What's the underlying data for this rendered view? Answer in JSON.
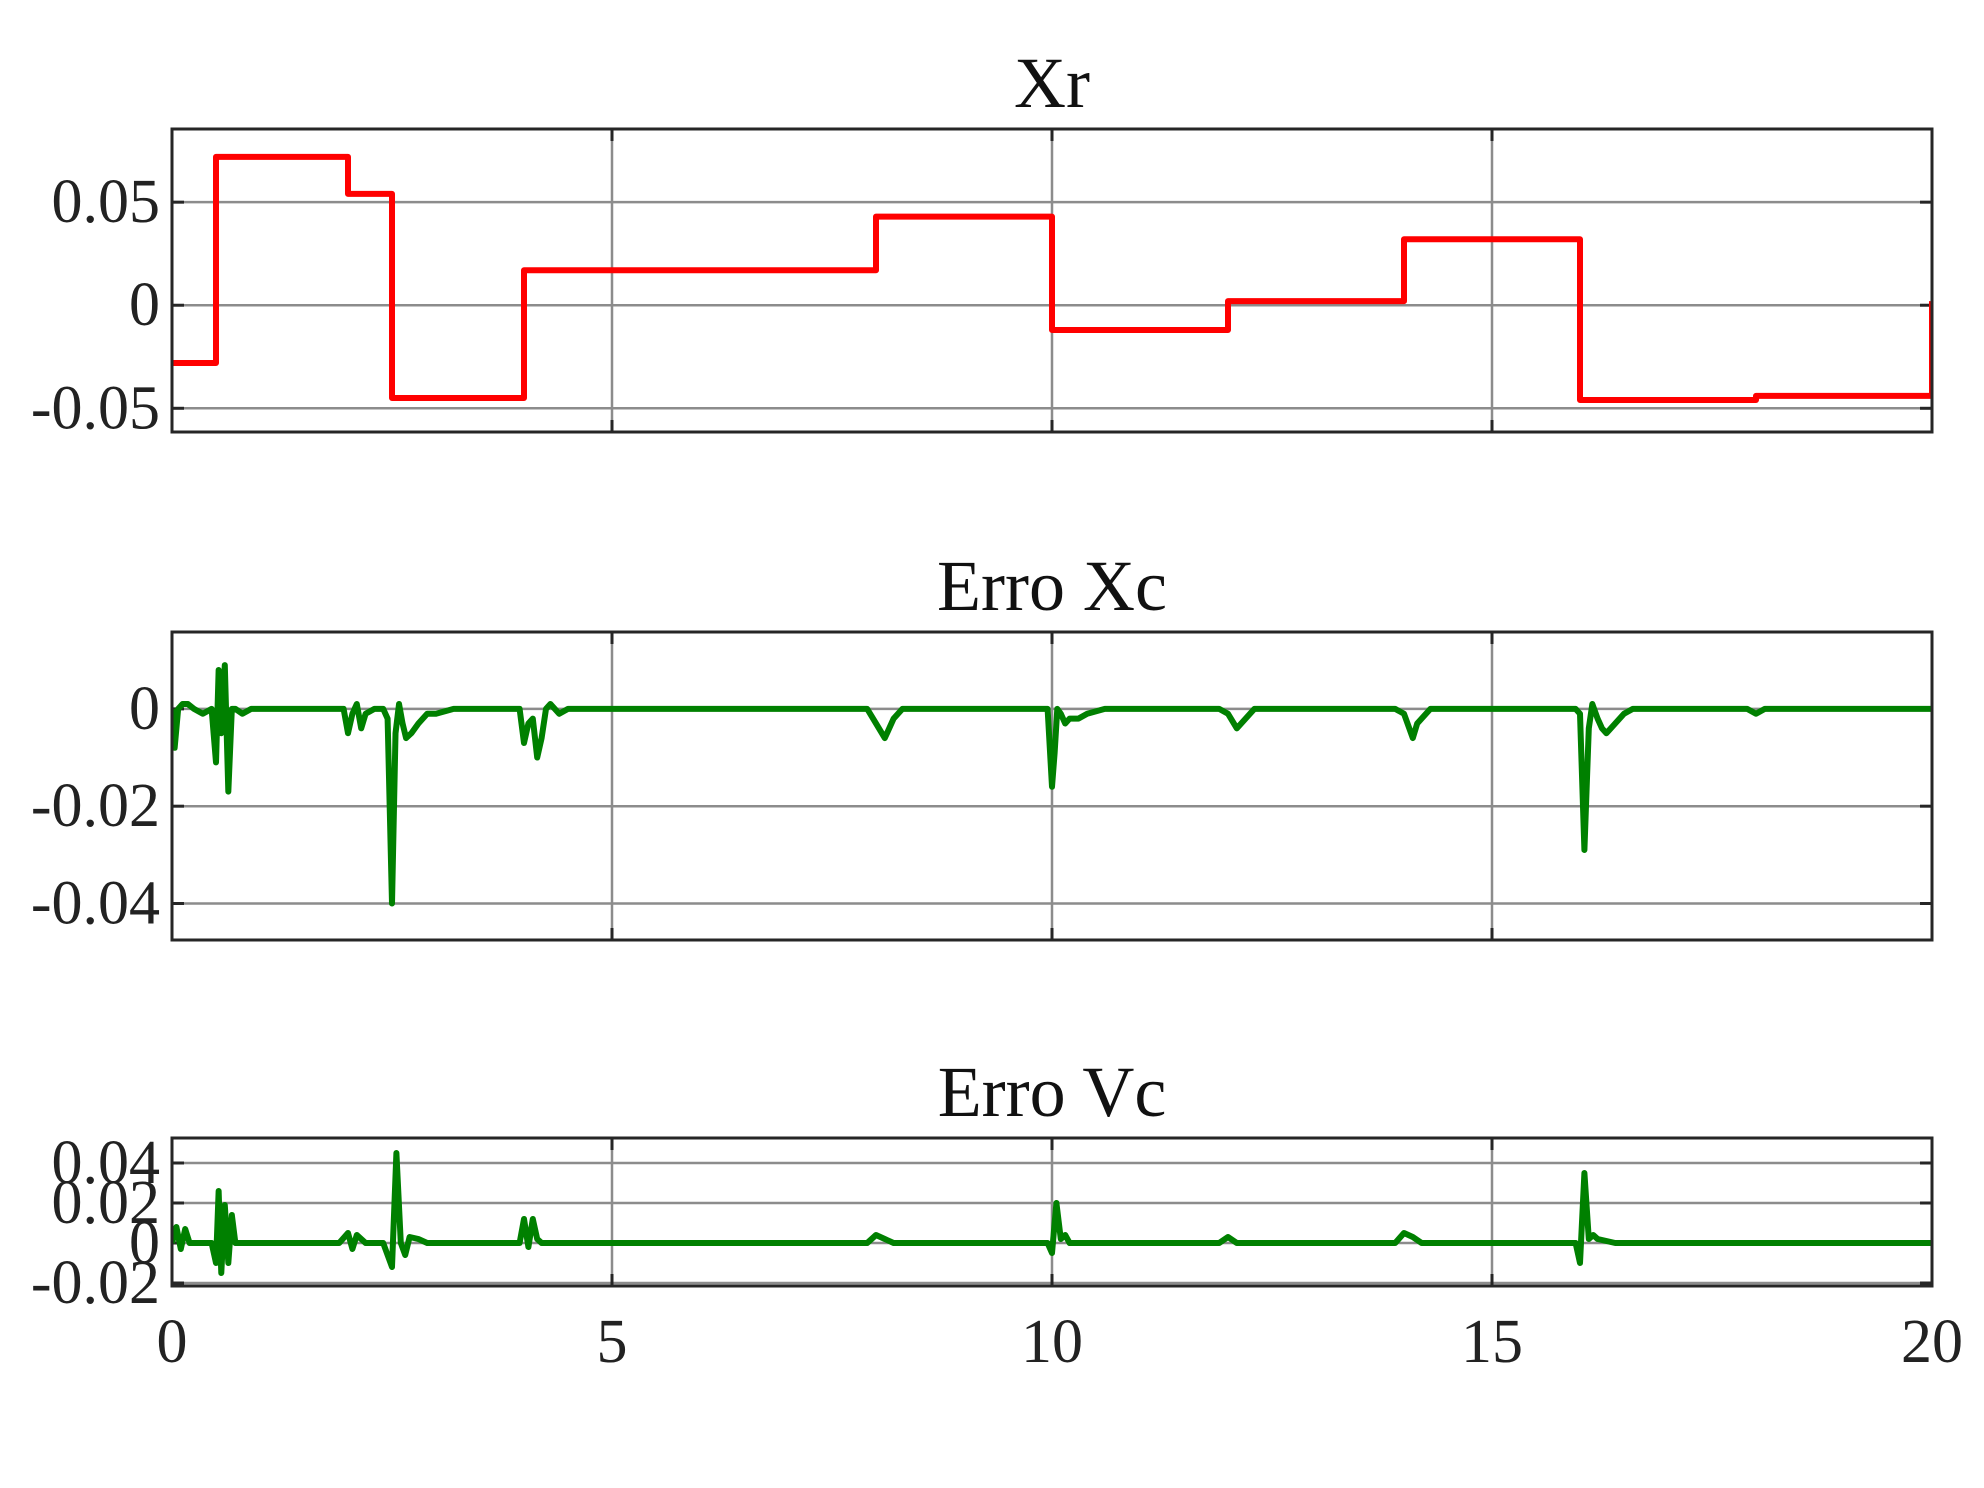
{
  "chart_data": [
    {
      "type": "line",
      "title": "Xr",
      "xlim": [
        0,
        20
      ],
      "ylim": [
        -0.0615,
        0.0855
      ],
      "grid": true,
      "x_ticks": [],
      "y_ticks": [
        -0.05,
        0,
        0.05
      ],
      "y_tick_labels": [
        "-0.05",
        "0",
        "0.05"
      ],
      "series": [
        {
          "color": "#ff0000",
          "step": true,
          "x": [
            0,
            0.5,
            2.0,
            2.5,
            4.0,
            8.0,
            10.0,
            12.0,
            14.0,
            16.0,
            18.0,
            20.0
          ],
          "y": [
            -0.028,
            0.072,
            0.054,
            -0.045,
            0.017,
            0.043,
            -0.012,
            0.002,
            0.032,
            -0.046,
            -0.044,
            0.002
          ]
        }
      ]
    },
    {
      "type": "line",
      "title": "Erro Xc",
      "xlim": [
        0,
        20
      ],
      "ylim": [
        -0.0475,
        0.0158
      ],
      "grid": true,
      "x_ticks": [],
      "y_ticks": [
        -0.04,
        -0.02,
        0
      ],
      "y_tick_labels": [
        "-0.04",
        "-0.02",
        "0"
      ],
      "series": [
        {
          "color": "#008000",
          "x": [
            0,
            0.03,
            0.07,
            0.12,
            0.18,
            0.25,
            0.35,
            0.45,
            0.5,
            0.53,
            0.56,
            0.6,
            0.64,
            0.68,
            0.72,
            0.8,
            0.9,
            1.0,
            1.5,
            1.95,
            2.0,
            2.05,
            2.1,
            2.15,
            2.2,
            2.3,
            2.4,
            2.45,
            2.5,
            2.54,
            2.58,
            2.62,
            2.66,
            2.72,
            2.8,
            2.9,
            3.0,
            3.2,
            3.5,
            3.95,
            4.0,
            4.05,
            4.1,
            4.15,
            4.2,
            4.25,
            4.3,
            4.4,
            4.5,
            4.8,
            6.0,
            7.9,
            8.0,
            8.1,
            8.15,
            8.2,
            8.3,
            8.4,
            8.6,
            9.95,
            10.0,
            10.03,
            10.06,
            10.1,
            10.15,
            10.2,
            10.3,
            10.4,
            10.6,
            11.0,
            11.9,
            12.0,
            12.1,
            12.15,
            12.2,
            12.3,
            12.5,
            13.9,
            14.0,
            14.1,
            14.15,
            14.2,
            14.3,
            14.5,
            15.95,
            16.0,
            16.05,
            16.1,
            16.14,
            16.2,
            16.25,
            16.3,
            16.4,
            16.5,
            16.6,
            17.0,
            17.9,
            18.0,
            18.1,
            18.5,
            20.0
          ],
          "y": [
            0,
            -0.008,
            0,
            0.001,
            0.001,
            0.0,
            -0.001,
            0.0,
            -0.011,
            0.008,
            -0.005,
            0.009,
            -0.017,
            0.0,
            0.0,
            -0.001,
            0.0,
            0.0,
            0.0,
            0.0,
            -0.005,
            -0.001,
            0.001,
            -0.004,
            -0.001,
            0.0,
            0.0,
            -0.002,
            -0.04,
            -0.005,
            0.001,
            -0.003,
            -0.006,
            -0.005,
            -0.003,
            -0.001,
            -0.001,
            0.0,
            0.0,
            0.0,
            -0.007,
            -0.003,
            -0.002,
            -0.01,
            -0.006,
            0.0,
            0.001,
            -0.001,
            0.0,
            0.0,
            0.0,
            0.0,
            -0.003,
            -0.006,
            -0.004,
            -0.002,
            0.0,
            0.0,
            0.0,
            0.0,
            -0.016,
            -0.009,
            0.0,
            -0.001,
            -0.003,
            -0.002,
            -0.002,
            -0.001,
            0.0,
            0.0,
            0.0,
            -0.001,
            -0.004,
            -0.003,
            -0.002,
            0.0,
            0.0,
            0.0,
            -0.001,
            -0.006,
            -0.003,
            -0.002,
            0.0,
            0.0,
            0.0,
            -0.001,
            -0.029,
            -0.004,
            0.001,
            -0.002,
            -0.004,
            -0.005,
            -0.003,
            -0.001,
            0.0,
            0.0,
            0.0,
            -0.001,
            0.0,
            0.0,
            0.0
          ]
        }
      ]
    },
    {
      "type": "line",
      "title": "Erro Vc",
      "xlim": [
        0,
        20
      ],
      "ylim": [
        -0.0215,
        0.0525
      ],
      "grid": true,
      "x_ticks": [
        0,
        5,
        10,
        15,
        20
      ],
      "x_tick_labels": [
        "0",
        "5",
        "10",
        "15",
        "20"
      ],
      "y_ticks": [
        -0.02,
        0,
        0.02,
        0.04
      ],
      "y_tick_labels": [
        "-0.02",
        "0",
        "0.02",
        "0.04"
      ],
      "series": [
        {
          "color": "#008000",
          "x": [
            0,
            0.05,
            0.1,
            0.15,
            0.2,
            0.3,
            0.45,
            0.5,
            0.53,
            0.56,
            0.6,
            0.64,
            0.68,
            0.72,
            0.8,
            1.0,
            1.9,
            2.0,
            2.05,
            2.1,
            2.2,
            2.4,
            2.5,
            2.55,
            2.6,
            2.65,
            2.7,
            2.8,
            2.9,
            3.0,
            3.5,
            3.95,
            4.0,
            4.05,
            4.1,
            4.15,
            4.2,
            4.3,
            4.5,
            7.9,
            8.0,
            8.1,
            8.2,
            8.3,
            8.5,
            9.95,
            10.0,
            10.05,
            10.1,
            10.15,
            10.2,
            10.3,
            10.5,
            11.9,
            12.0,
            12.1,
            12.2,
            12.4,
            13.9,
            14.0,
            14.1,
            14.2,
            14.3,
            14.5,
            15.95,
            16.0,
            16.05,
            16.1,
            16.15,
            16.2,
            16.3,
            16.4,
            16.6,
            17.0,
            20.0
          ],
          "y": [
            0,
            0.008,
            -0.003,
            0.007,
            0.0,
            0.0,
            0.0,
            -0.01,
            0.026,
            -0.015,
            0.019,
            -0.01,
            0.014,
            0.0,
            0.0,
            0.0,
            0.0,
            0.005,
            -0.003,
            0.004,
            0.0,
            0.0,
            -0.012,
            0.045,
            0.0,
            -0.006,
            0.003,
            0.002,
            0.0,
            0.0,
            0.0,
            0.0,
            0.012,
            -0.002,
            0.012,
            0.002,
            0.0,
            0.0,
            0.0,
            0.0,
            0.004,
            0.002,
            0.0,
            0.0,
            0.0,
            0.0,
            -0.005,
            0.02,
            0.002,
            0.004,
            0.0,
            0.0,
            0.0,
            0.0,
            0.003,
            0.0,
            0.0,
            0.0,
            0.0,
            0.005,
            0.003,
            0.0,
            0.0,
            0.0,
            0.0,
            -0.01,
            0.035,
            0.002,
            0.004,
            0.002,
            0.001,
            0.0,
            0.0,
            0.0,
            0.0
          ]
        }
      ]
    }
  ]
}
